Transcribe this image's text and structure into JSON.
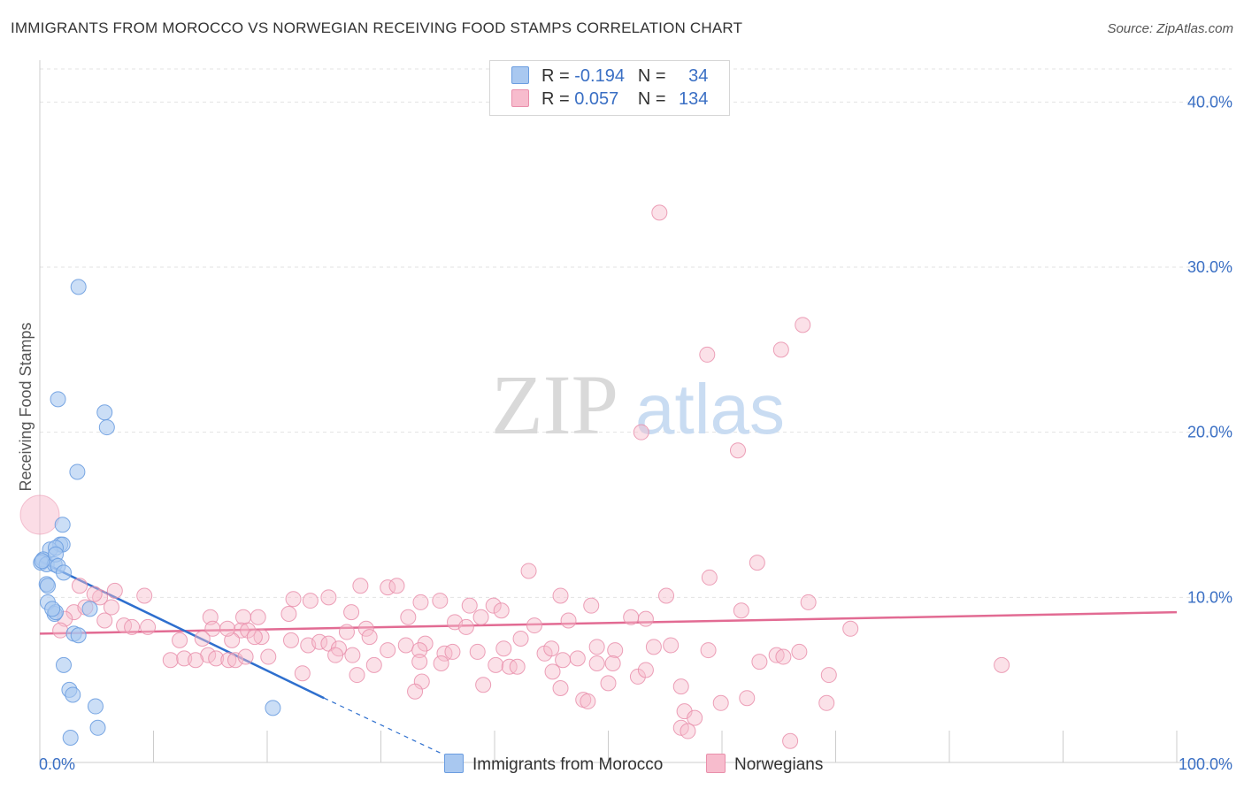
{
  "title": "IMMIGRANTS FROM MOROCCO VS NORWEGIAN RECEIVING FOOD STAMPS CORRELATION CHART",
  "source": "Source: ZipAtlas.com",
  "watermark": {
    "zip": "ZIP",
    "atlas": "atlas"
  },
  "legend": {
    "rows": [
      {
        "r_label": "R =",
        "r_value": "-0.194",
        "n_label": "N =",
        "n_value": "34"
      },
      {
        "r_label": "R =",
        "r_value": "0.057",
        "n_label": "N =",
        "n_value": "134"
      }
    ]
  },
  "bottom_legend": {
    "series1": "Immigrants from Morocco",
    "series2": "Norwegians"
  },
  "colors": {
    "blue_fill": "#a9c8f0",
    "blue_stroke": "#6b9de0",
    "blue_line": "#2e6fce",
    "pink_fill": "#f7bccd",
    "pink_stroke": "#e98fab",
    "pink_line": "#e26b93",
    "tick_text": "#3a6fc4",
    "grid": "#e3e3e3"
  },
  "chart_data": {
    "type": "scatter",
    "title": "IMMIGRANTS FROM MOROCCO VS NORWEGIAN RECEIVING FOOD STAMPS CORRELATION CHART",
    "xlabel": "",
    "ylabel": "Receiving Food Stamps",
    "xlim": [
      0,
      100
    ],
    "ylim": [
      0,
      42
    ],
    "x_tick_labels": [
      "0.0%",
      "100.0%"
    ],
    "y_ticks": [
      10,
      20,
      30,
      40
    ],
    "y_tick_labels": [
      "10.0%",
      "20.0%",
      "30.0%",
      "40.0%"
    ],
    "grid": true,
    "legend_position": "top-center",
    "series": [
      {
        "name": "Immigrants from Morocco",
        "r": -0.194,
        "n": 34,
        "trend": {
          "x0": 0,
          "y0": 12.2,
          "x1": 25,
          "y1": 3.9,
          "dash_to_x": 37,
          "dash_to_y": 0
        },
        "points": [
          [
            3.4,
            28.8
          ],
          [
            1.6,
            22.0
          ],
          [
            5.7,
            21.2
          ],
          [
            5.9,
            20.3
          ],
          [
            3.3,
            17.6
          ],
          [
            2.0,
            14.4
          ],
          [
            1.8,
            13.2
          ],
          [
            2.0,
            13.2
          ],
          [
            0.9,
            12.9
          ],
          [
            1.4,
            13.0
          ],
          [
            0.3,
            12.3
          ],
          [
            0.1,
            12.1
          ],
          [
            0.6,
            12.0
          ],
          [
            1.3,
            12.0
          ],
          [
            1.4,
            12.6
          ],
          [
            1.6,
            11.9
          ],
          [
            2.1,
            11.5
          ],
          [
            0.6,
            10.8
          ],
          [
            0.7,
            10.7
          ],
          [
            0.7,
            9.7
          ],
          [
            1.3,
            9.0
          ],
          [
            1.4,
            9.1
          ],
          [
            4.4,
            9.3
          ],
          [
            1.1,
            9.3
          ],
          [
            3.0,
            7.8
          ],
          [
            3.4,
            7.7
          ],
          [
            2.1,
            5.9
          ],
          [
            2.6,
            4.4
          ],
          [
            2.9,
            4.1
          ],
          [
            4.9,
            3.4
          ],
          [
            5.1,
            2.1
          ],
          [
            2.7,
            1.5
          ],
          [
            20.5,
            3.3
          ],
          [
            0.2,
            12.2
          ]
        ]
      },
      {
        "name": "Norwegians",
        "r": 0.057,
        "n": 134,
        "trend": {
          "x0": 0,
          "y0": 7.8,
          "x1": 100,
          "y1": 9.1
        },
        "big_point": [
          0,
          15.0
        ],
        "points": [
          [
            54.5,
            33.3
          ],
          [
            67.1,
            26.5
          ],
          [
            58.7,
            24.7
          ],
          [
            65.2,
            25.0
          ],
          [
            52.9,
            20.0
          ],
          [
            61.4,
            18.9
          ],
          [
            63.1,
            12.1
          ],
          [
            58.9,
            11.2
          ],
          [
            43.0,
            11.6
          ],
          [
            28.2,
            10.7
          ],
          [
            30.6,
            10.6
          ],
          [
            31.4,
            10.7
          ],
          [
            3.5,
            10.7
          ],
          [
            6.6,
            10.4
          ],
          [
            9.2,
            10.1
          ],
          [
            5.3,
            10.0
          ],
          [
            4.8,
            10.2
          ],
          [
            23.8,
            9.8
          ],
          [
            35.2,
            9.8
          ],
          [
            39.9,
            9.5
          ],
          [
            33.5,
            9.7
          ],
          [
            37.8,
            9.5
          ],
          [
            48.5,
            9.5
          ],
          [
            55.1,
            10.1
          ],
          [
            67.6,
            9.7
          ],
          [
            45.8,
            10.1
          ],
          [
            22.3,
            9.9
          ],
          [
            25.4,
            10.0
          ],
          [
            3.0,
            9.1
          ],
          [
            4.0,
            9.4
          ],
          [
            6.3,
            9.4
          ],
          [
            21.9,
            9.0
          ],
          [
            27.4,
            9.1
          ],
          [
            40.6,
            9.2
          ],
          [
            38.8,
            8.8
          ],
          [
            2.2,
            8.7
          ],
          [
            15.0,
            8.8
          ],
          [
            17.9,
            8.8
          ],
          [
            19.2,
            8.8
          ],
          [
            32.4,
            8.8
          ],
          [
            5.7,
            8.6
          ],
          [
            61.7,
            9.2
          ],
          [
            52.0,
            8.8
          ],
          [
            53.3,
            8.7
          ],
          [
            36.5,
            8.5
          ],
          [
            43.5,
            8.3
          ],
          [
            46.5,
            8.6
          ],
          [
            7.4,
            8.3
          ],
          [
            8.1,
            8.2
          ],
          [
            9.5,
            8.2
          ],
          [
            15.2,
            8.1
          ],
          [
            17.7,
            8.0
          ],
          [
            18.3,
            8.0
          ],
          [
            28.7,
            8.1
          ],
          [
            37.5,
            8.2
          ],
          [
            71.3,
            8.1
          ],
          [
            1.8,
            8.0
          ],
          [
            19.5,
            7.6
          ],
          [
            27.0,
            7.9
          ],
          [
            29.0,
            7.6
          ],
          [
            33.9,
            7.2
          ],
          [
            42.3,
            7.5
          ],
          [
            54.0,
            7.0
          ],
          [
            55.5,
            7.1
          ],
          [
            12.3,
            7.4
          ],
          [
            14.3,
            7.5
          ],
          [
            16.9,
            7.4
          ],
          [
            18.9,
            7.6
          ],
          [
            22.1,
            7.4
          ],
          [
            23.6,
            7.1
          ],
          [
            24.6,
            7.3
          ],
          [
            25.4,
            7.2
          ],
          [
            26.3,
            6.9
          ],
          [
            30.6,
            6.8
          ],
          [
            32.2,
            7.1
          ],
          [
            33.4,
            6.8
          ],
          [
            35.6,
            6.6
          ],
          [
            36.3,
            6.7
          ],
          [
            38.5,
            6.7
          ],
          [
            40.8,
            6.9
          ],
          [
            44.4,
            6.6
          ],
          [
            45.0,
            6.9
          ],
          [
            49.0,
            7.0
          ],
          [
            50.6,
            6.8
          ],
          [
            46.0,
            6.2
          ],
          [
            47.3,
            6.3
          ],
          [
            20.1,
            6.4
          ],
          [
            14.8,
            6.5
          ],
          [
            11.5,
            6.2
          ],
          [
            12.7,
            6.3
          ],
          [
            13.7,
            6.2
          ],
          [
            15.5,
            6.3
          ],
          [
            16.6,
            6.2
          ],
          [
            17.2,
            6.2
          ],
          [
            18.1,
            6.4
          ],
          [
            26.0,
            6.5
          ],
          [
            27.5,
            6.5
          ],
          [
            29.4,
            5.9
          ],
          [
            33.4,
            6.1
          ],
          [
            35.3,
            6.0
          ],
          [
            40.1,
            5.9
          ],
          [
            41.3,
            5.8
          ],
          [
            42.0,
            5.8
          ],
          [
            45.1,
            5.5
          ],
          [
            49.0,
            6.0
          ],
          [
            50.4,
            6.0
          ],
          [
            52.6,
            5.2
          ],
          [
            53.3,
            5.6
          ],
          [
            58.8,
            6.8
          ],
          [
            63.3,
            6.1
          ],
          [
            64.8,
            6.5
          ],
          [
            65.4,
            6.4
          ],
          [
            66.8,
            6.7
          ],
          [
            69.4,
            5.3
          ],
          [
            84.6,
            5.9
          ],
          [
            23.1,
            5.4
          ],
          [
            27.9,
            5.3
          ],
          [
            33.6,
            4.9
          ],
          [
            39.0,
            4.7
          ],
          [
            45.8,
            4.5
          ],
          [
            50.0,
            4.8
          ],
          [
            56.4,
            4.6
          ],
          [
            47.8,
            3.8
          ],
          [
            59.9,
            3.6
          ],
          [
            62.2,
            3.9
          ],
          [
            69.2,
            3.6
          ],
          [
            56.7,
            3.1
          ],
          [
            57.6,
            2.7
          ],
          [
            56.4,
            2.1
          ],
          [
            57.0,
            1.9
          ],
          [
            66.0,
            1.3
          ],
          [
            33.0,
            4.3
          ],
          [
            48.2,
            3.7
          ],
          [
            16.5,
            8.1
          ]
        ]
      }
    ]
  }
}
